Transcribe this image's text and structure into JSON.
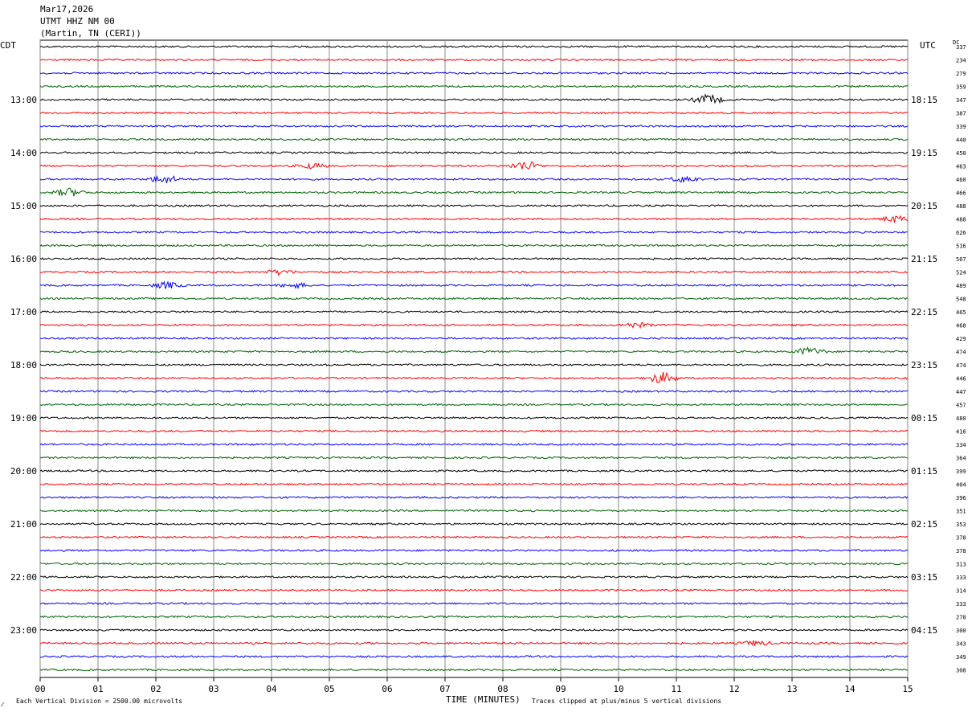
{
  "header": {
    "date": "Mar17,2026",
    "station": "UTMT HHZ NM 00",
    "location": "(Martin, TN (CERI))"
  },
  "left_tz": "CDT",
  "right_tz": "UTC",
  "dc_label": "DC",
  "footer": {
    "scale_note": "Each Vertical Division = 2500.00 microvolts",
    "clip_note": "Traces clipped at plus/minus 5 vertical divisions",
    "corner_mark": "⁄⁄"
  },
  "chart_data": {
    "type": "line",
    "title": "UTMT HHZ NM 00",
    "xlabel": "TIME (MINUTES)",
    "xlim": [
      0,
      15
    ],
    "x_ticks": [
      "00",
      "01",
      "02",
      "03",
      "04",
      "05",
      "06",
      "07",
      "08",
      "09",
      "10",
      "11",
      "12",
      "13",
      "14",
      "15"
    ],
    "trace_colors": [
      "#000000",
      "#ff0000",
      "#0000ff",
      "#006400"
    ],
    "rows": [
      {
        "cdt": "",
        "utc": "",
        "dc": "337"
      },
      {
        "cdt": "",
        "utc": "",
        "dc": "234"
      },
      {
        "cdt": "",
        "utc": "",
        "dc": "279"
      },
      {
        "cdt": "",
        "utc": "",
        "dc": "359"
      },
      {
        "cdt": "13:00",
        "utc": "18:15",
        "dc": "347"
      },
      {
        "cdt": "",
        "utc": "",
        "dc": "387"
      },
      {
        "cdt": "",
        "utc": "",
        "dc": "339"
      },
      {
        "cdt": "",
        "utc": "",
        "dc": "440"
      },
      {
        "cdt": "14:00",
        "utc": "19:15",
        "dc": "450"
      },
      {
        "cdt": "",
        "utc": "",
        "dc": "463"
      },
      {
        "cdt": "",
        "utc": "",
        "dc": "460"
      },
      {
        "cdt": "",
        "utc": "",
        "dc": "466"
      },
      {
        "cdt": "15:00",
        "utc": "20:15",
        "dc": "488"
      },
      {
        "cdt": "",
        "utc": "",
        "dc": "488"
      },
      {
        "cdt": "",
        "utc": "",
        "dc": "626"
      },
      {
        "cdt": "",
        "utc": "",
        "dc": "516"
      },
      {
        "cdt": "16:00",
        "utc": "21:15",
        "dc": "567"
      },
      {
        "cdt": "",
        "utc": "",
        "dc": "524"
      },
      {
        "cdt": "",
        "utc": "",
        "dc": "489"
      },
      {
        "cdt": "",
        "utc": "",
        "dc": "548"
      },
      {
        "cdt": "17:00",
        "utc": "22:15",
        "dc": "465"
      },
      {
        "cdt": "",
        "utc": "",
        "dc": "468"
      },
      {
        "cdt": "",
        "utc": "",
        "dc": "429"
      },
      {
        "cdt": "",
        "utc": "",
        "dc": "474"
      },
      {
        "cdt": "18:00",
        "utc": "23:15",
        "dc": "474"
      },
      {
        "cdt": "",
        "utc": "",
        "dc": "446"
      },
      {
        "cdt": "",
        "utc": "",
        "dc": "447"
      },
      {
        "cdt": "",
        "utc": "",
        "dc": "457"
      },
      {
        "cdt": "19:00",
        "utc": "00:15",
        "dc": "480"
      },
      {
        "cdt": "",
        "utc": "",
        "dc": "416"
      },
      {
        "cdt": "",
        "utc": "",
        "dc": "334"
      },
      {
        "cdt": "",
        "utc": "",
        "dc": "364"
      },
      {
        "cdt": "20:00",
        "utc": "01:15",
        "dc": "399"
      },
      {
        "cdt": "",
        "utc": "",
        "dc": "404"
      },
      {
        "cdt": "",
        "utc": "",
        "dc": "396"
      },
      {
        "cdt": "",
        "utc": "",
        "dc": "351"
      },
      {
        "cdt": "21:00",
        "utc": "02:15",
        "dc": "353"
      },
      {
        "cdt": "",
        "utc": "",
        "dc": "378"
      },
      {
        "cdt": "",
        "utc": "",
        "dc": "378"
      },
      {
        "cdt": "",
        "utc": "",
        "dc": "313"
      },
      {
        "cdt": "22:00",
        "utc": "03:15",
        "dc": "333"
      },
      {
        "cdt": "",
        "utc": "",
        "dc": "314"
      },
      {
        "cdt": "",
        "utc": "",
        "dc": "333"
      },
      {
        "cdt": "",
        "utc": "",
        "dc": "278"
      },
      {
        "cdt": "23:00",
        "utc": "04:15",
        "dc": "300"
      },
      {
        "cdt": "",
        "utc": "",
        "dc": "343"
      },
      {
        "cdt": "",
        "utc": "",
        "dc": "349"
      },
      {
        "cdt": "",
        "utc": "",
        "dc": "308"
      }
    ],
    "events": [
      {
        "row": 4,
        "minute": 11.55,
        "amp": 6
      },
      {
        "row": 9,
        "minute": 8.4,
        "amp": 6
      },
      {
        "row": 9,
        "minute": 4.7,
        "amp": 3
      },
      {
        "row": 10,
        "minute": 2.15,
        "amp": 5
      },
      {
        "row": 10,
        "minute": 11.15,
        "amp": 4
      },
      {
        "row": 11,
        "minute": 0.5,
        "amp": 5
      },
      {
        "row": 13,
        "minute": 14.8,
        "amp": 4
      },
      {
        "row": 17,
        "minute": 4.15,
        "amp": 3
      },
      {
        "row": 18,
        "minute": 2.2,
        "amp": 4
      },
      {
        "row": 18,
        "minute": 4.4,
        "amp": 3
      },
      {
        "row": 21,
        "minute": 10.3,
        "amp": 3
      },
      {
        "row": 23,
        "minute": 13.3,
        "amp": 5
      },
      {
        "row": 25,
        "minute": 10.75,
        "amp": 7
      },
      {
        "row": 45,
        "minute": 12.35,
        "amp": 3
      }
    ],
    "grid": true
  }
}
